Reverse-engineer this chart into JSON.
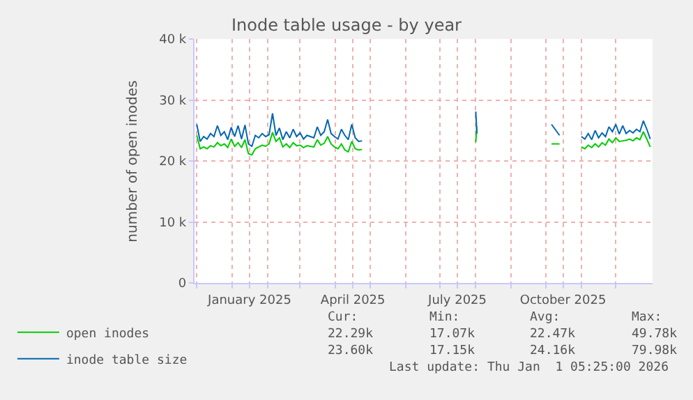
{
  "chart_data": {
    "type": "line",
    "title": "Inode table usage - by year",
    "ylabel": "number of open inodes",
    "x": [
      "2024-12-01",
      "2024-12-04",
      "2024-12-07",
      "2024-12-10",
      "2024-12-13",
      "2024-12-16",
      "2024-12-19",
      "2024-12-22",
      "2024-12-25",
      "2024-12-28",
      "2024-12-31",
      "2025-01-03",
      "2025-01-06",
      "2025-01-09",
      "2025-01-12",
      "2025-01-15",
      "2025-01-18",
      "2025-01-21",
      "2025-01-24",
      "2025-01-27",
      "2025-01-30",
      "2025-02-02",
      "2025-02-05",
      "2025-02-08",
      "2025-02-11",
      "2025-02-14",
      "2025-02-17",
      "2025-02-20",
      "2025-02-23",
      "2025-02-26",
      "2025-03-01",
      "2025-03-04",
      "2025-03-07",
      "2025-03-10",
      "2025-03-13",
      "2025-03-16",
      "2025-03-19",
      "2025-03-22",
      "2025-03-25",
      "2025-03-28",
      "2025-03-31",
      "2025-04-03",
      "2025-04-06",
      "2025-04-09",
      "2025-04-12",
      "2025-04-15",
      "2025-04-18",
      "2025-04-21",
      "2025-04-24",
      "2025-06-01",
      "2025-08-01",
      "2025-08-02",
      "2025-09-01",
      "2025-10-06",
      "2025-10-13",
      "2025-10-20",
      "2025-11-01",
      "2025-11-04",
      "2025-11-07",
      "2025-11-10",
      "2025-11-13",
      "2025-11-16",
      "2025-11-19",
      "2025-11-22",
      "2025-11-25",
      "2025-11-28",
      "2025-12-01",
      "2025-12-04",
      "2025-12-07",
      "2025-12-10",
      "2025-12-13",
      "2025-12-16",
      "2025-12-19",
      "2025-12-22",
      "2025-12-25",
      "2025-12-28",
      "2025-12-31"
    ],
    "series": [
      {
        "name": "open inodes",
        "color": "#00cc00",
        "values": [
          24200,
          22000,
          22300,
          22000,
          22500,
          22300,
          23000,
          22500,
          22800,
          22200,
          23600,
          22400,
          23000,
          22200,
          23500,
          21200,
          21000,
          22000,
          22300,
          22600,
          22400,
          22800,
          24700,
          23200,
          23800,
          22300,
          22800,
          22200,
          23000,
          22500,
          22600,
          22200,
          22500,
          22400,
          22300,
          23500,
          22600,
          22900,
          24000,
          22800,
          22300,
          22000,
          22800,
          21800,
          21500,
          23200,
          22000,
          21800,
          21900,
          null,
          23100,
          25600,
          null,
          22800,
          22800,
          null,
          22300,
          22000,
          22600,
          22200,
          22800,
          22300,
          23000,
          22600,
          23600,
          23000,
          23800,
          23200,
          23300,
          23400,
          23600,
          23300,
          23800,
          23500,
          24800,
          23600,
          22300
        ]
      },
      {
        "name": "inode table size",
        "color": "#0066b3",
        "values": [
          26000,
          23200,
          24000,
          23600,
          24500,
          24000,
          25800,
          24200,
          24800,
          23500,
          25500,
          24000,
          25800,
          23600,
          25900,
          22800,
          22400,
          24200,
          23800,
          24500,
          24000,
          24300,
          27800,
          24200,
          25400,
          23500,
          24800,
          23800,
          25200,
          24000,
          24600,
          23600,
          24200,
          24000,
          23800,
          25600,
          24200,
          24800,
          26800,
          24500,
          24000,
          23600,
          25200,
          24200,
          23500,
          26000,
          23800,
          23200,
          23300,
          null,
          28100,
          24500,
          null,
          26000,
          24200,
          null,
          24000,
          23600,
          24500,
          23500,
          25000,
          23800,
          24600,
          24000,
          25600,
          24800,
          26000,
          24400,
          25800,
          24500,
          25000,
          24600,
          25200,
          24800,
          26600,
          25200,
          23600
        ]
      }
    ],
    "xlim": [
      "2024-11-29",
      "2026-01-02"
    ],
    "xticks": [
      {
        "value": "2024-12-01",
        "label": null
      },
      {
        "value": "2025-01-01",
        "label": null
      },
      {
        "value": "2025-01-16",
        "label": "January 2025"
      },
      {
        "value": "2025-02-01",
        "label": null
      },
      {
        "value": "2025-03-01",
        "label": null
      },
      {
        "value": "2025-04-01",
        "label": null
      },
      {
        "value": "2025-04-16",
        "label": "April 2025"
      },
      {
        "value": "2025-05-01",
        "label": null
      },
      {
        "value": "2025-06-01",
        "label": null
      },
      {
        "value": "2025-07-01",
        "label": null
      },
      {
        "value": "2025-07-16",
        "label": "July 2025"
      },
      {
        "value": "2025-08-01",
        "label": null
      },
      {
        "value": "2025-09-01",
        "label": null
      },
      {
        "value": "2025-10-01",
        "label": null
      },
      {
        "value": "2025-10-16",
        "label": "October 2025"
      },
      {
        "value": "2025-11-01",
        "label": null
      },
      {
        "value": "2025-12-01",
        "label": null
      }
    ],
    "ylim": [
      0,
      40000
    ],
    "yticks": [
      {
        "value": 0,
        "label": "0"
      },
      {
        "value": 10000,
        "label": "10 k"
      },
      {
        "value": 20000,
        "label": "20 k"
      },
      {
        "value": 30000,
        "label": "30 k"
      },
      {
        "value": 40000,
        "label": "40 k"
      }
    ],
    "grid": true,
    "legend": "bottom left",
    "marker": "none",
    "line_style": "solid",
    "annotations": [
      "Cur:",
      "Min:",
      "Avg:",
      "Max:",
      "22.29k",
      "17.07k",
      "22.47k",
      "49.78k",
      "23.60k",
      "17.15k",
      "24.16k",
      "79.98k",
      "Last update: Thu Jan  1 05:25:00 2026"
    ]
  }
}
